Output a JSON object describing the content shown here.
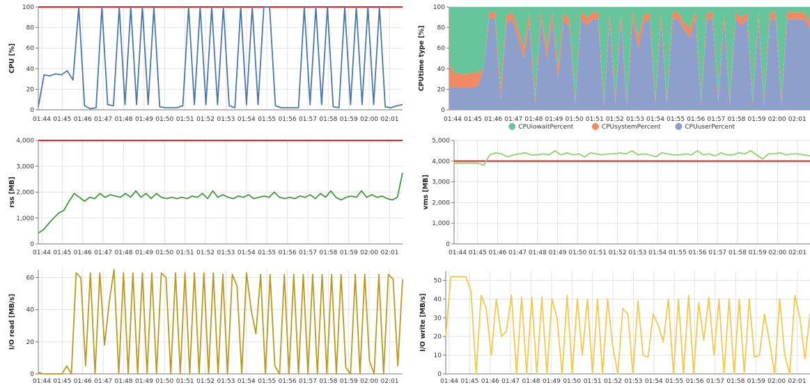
{
  "colors": {
    "grid": "#e3e3e3",
    "axis": "#777777",
    "threshold": "#e02424"
  },
  "x_ticks": [
    "01:44",
    "01:45",
    "01:46",
    "01:47",
    "01:48",
    "01:49",
    "01:50",
    "01:51",
    "01:52",
    "01:53",
    "01:54",
    "01:55",
    "01:56",
    "01:57",
    "01:58",
    "01:59",
    "02:00",
    "02:01"
  ],
  "chart_data": [
    {
      "type": "line",
      "ylabel": "CPU [%]",
      "ylim": [
        0,
        100
      ],
      "yticks": [
        0,
        20,
        40,
        60,
        80,
        100
      ],
      "threshold": 100,
      "grid": true,
      "color": "#4a77a8",
      "x": "time 01:44-02:01",
      "series": [
        {
          "values": [
            3,
            34,
            33,
            35,
            34,
            38,
            29,
            100,
            4,
            1,
            2,
            100,
            5,
            4,
            100,
            5,
            100,
            5,
            100,
            5,
            100,
            3,
            2,
            2,
            2,
            4,
            100,
            5,
            100,
            5,
            100,
            5,
            100,
            4,
            2,
            100,
            5,
            100,
            5,
            100,
            100,
            4,
            2,
            2,
            2,
            2,
            100,
            5,
            100,
            5,
            100,
            3,
            2,
            100,
            5,
            100,
            5,
            100,
            5,
            100,
            3,
            2,
            4,
            5
          ]
        }
      ]
    },
    {
      "type": "area",
      "ylabel": "CPUtime type [%]",
      "ylim": [
        0,
        100
      ],
      "yticks": [
        0,
        20,
        40,
        60,
        80,
        100
      ],
      "grid": true,
      "legend_position": "bottom",
      "series": [
        {
          "name": "CPUiowaitPercent",
          "color": "#67c59c"
        },
        {
          "name": "CPUsystemPercent",
          "color": "#f08a62"
        },
        {
          "name": "CPUuserPercent",
          "color": "#8da0cb"
        }
      ],
      "iowait_top": [
        100,
        100,
        100,
        100,
        100,
        100,
        100,
        100,
        100,
        100,
        100,
        100,
        100,
        100,
        100,
        100,
        100,
        100,
        100,
        100,
        100,
        100,
        100,
        100,
        100,
        100,
        100,
        100,
        100,
        100,
        100,
        100,
        100,
        100,
        100,
        100,
        100,
        100,
        100,
        100,
        100,
        100,
        100,
        100,
        100,
        100,
        100,
        100,
        100,
        100,
        100,
        100,
        100,
        100,
        100,
        100,
        100,
        100,
        100,
        100,
        100,
        100,
        100,
        100
      ],
      "system_top": [
        45,
        36,
        35,
        35,
        36,
        37,
        40,
        95,
        95,
        20,
        92,
        95,
        80,
        60,
        95,
        10,
        95,
        60,
        95,
        40,
        95,
        88,
        8,
        95,
        90,
        95,
        95,
        5,
        95,
        8,
        95,
        5,
        95,
        70,
        92,
        95,
        8,
        95,
        8,
        95,
        95,
        85,
        80,
        95,
        8,
        95,
        95,
        10,
        95,
        5,
        95,
        90,
        95,
        8,
        95,
        5,
        95,
        95,
        8,
        95,
        95,
        95,
        95,
        85
      ],
      "user_top": [
        22,
        22,
        22,
        22,
        22,
        23,
        40,
        90,
        88,
        10,
        85,
        88,
        70,
        50,
        85,
        5,
        88,
        50,
        88,
        30,
        88,
        80,
        5,
        88,
        82,
        88,
        88,
        3,
        88,
        5,
        88,
        3,
        88,
        60,
        85,
        88,
        5,
        88,
        5,
        88,
        88,
        78,
        70,
        88,
        5,
        88,
        88,
        7,
        88,
        3,
        88,
        82,
        88,
        5,
        88,
        3,
        88,
        88,
        5,
        88,
        88,
        88,
        88,
        78
      ]
    },
    {
      "type": "line",
      "ylabel": "rss [MB]",
      "ylim": [
        0,
        4000
      ],
      "yticks": [
        0,
        1000,
        2000,
        3000,
        4000
      ],
      "ytick_labels": [
        "0",
        "1,000",
        "2,000",
        "3,000",
        "4,000"
      ],
      "threshold": 4000,
      "grid": true,
      "color": "#3f9a3a",
      "x": "time 01:44-02:01",
      "series": [
        {
          "values": [
            420,
            550,
            780,
            1000,
            1200,
            1300,
            1650,
            1950,
            1800,
            1650,
            1800,
            1750,
            1950,
            1800,
            1900,
            1850,
            1800,
            1950,
            1800,
            2050,
            1800,
            1950,
            1750,
            1950,
            1800,
            1750,
            1800,
            1750,
            1800,
            1750,
            1850,
            1800,
            1950,
            1750,
            2050,
            1800,
            1900,
            1800,
            1750,
            1850,
            1800,
            1900,
            1750,
            1800,
            1850,
            1800,
            2000,
            1800,
            1750,
            1800,
            1750,
            1850,
            1800,
            1900,
            1750,
            1950,
            1800,
            2050,
            1800,
            1700,
            1800,
            1850,
            1800,
            2050,
            1800,
            1900,
            1800,
            1850,
            1750,
            1700,
            1800,
            2750
          ]
        }
      ]
    },
    {
      "type": "line",
      "ylabel": "vms [MB]",
      "ylim": [
        0,
        5000
      ],
      "yticks": [
        0,
        1000,
        2000,
        3000,
        4000,
        5000
      ],
      "ytick_labels": [
        "0",
        "1,000",
        "2,000",
        "3,000",
        "4,000",
        "5,000"
      ],
      "threshold": 4000,
      "grid": true,
      "color": "#8ed16f",
      "x": "time 01:44-02:01",
      "series": [
        {
          "values": [
            3900,
            3900,
            3900,
            3900,
            3900,
            3800,
            4300,
            4400,
            4350,
            4200,
            4300,
            4350,
            4400,
            4300,
            4300,
            4350,
            4300,
            4500,
            4300,
            4400,
            4300,
            4350,
            4200,
            4400,
            4350,
            4300,
            4350,
            4350,
            4400,
            4350,
            4500,
            4300,
            4350,
            4300,
            4200,
            4400,
            4350,
            4300,
            4300,
            4350,
            4300,
            4500,
            4300,
            4350,
            4250,
            4400,
            4300,
            4300,
            4400,
            4350,
            4500,
            4300,
            4100,
            4350,
            4350,
            4400,
            4300,
            4350,
            4350,
            4300,
            4250
          ]
        }
      ]
    },
    {
      "type": "line",
      "ylabel": "I/O read [MB/s]",
      "ylim": [
        0,
        65
      ],
      "yticks": [
        0,
        20,
        40,
        60
      ],
      "grid": true,
      "color": "#b89a1e",
      "x": "time 01:44-02:01",
      "series": [
        {
          "values": [
            1,
            0,
            0,
            0,
            0,
            0,
            5,
            0,
            63,
            60,
            5,
            63,
            0,
            63,
            18,
            45,
            65,
            0,
            63,
            0,
            63,
            0,
            63,
            0,
            63,
            0,
            63,
            60,
            0,
            63,
            0,
            63,
            0,
            63,
            0,
            63,
            0,
            63,
            0,
            62,
            0,
            62,
            55,
            0,
            63,
            40,
            25,
            62,
            0,
            62,
            5,
            0,
            62,
            0,
            62,
            0,
            62,
            0,
            62,
            0,
            62,
            0,
            62,
            0,
            62,
            4,
            0,
            62,
            0,
            62,
            8,
            0,
            62,
            0,
            62,
            59,
            5,
            59
          ]
        }
      ]
    },
    {
      "type": "line",
      "ylabel": "I/O write [MB/s]",
      "ylim": [
        0,
        55
      ],
      "yticks": [
        0,
        10,
        20,
        30,
        40,
        50
      ],
      "grid": true,
      "color": "#f2c94c",
      "x": "time 01:44-02:01",
      "series": [
        {
          "values": [
            20,
            52,
            52,
            52,
            52,
            44,
            0,
            42,
            35,
            10,
            40,
            20,
            23,
            42,
            0,
            41,
            0,
            41,
            0,
            41,
            0,
            40,
            30,
            0,
            42,
            0,
            40,
            10,
            40,
            0,
            40,
            0,
            40,
            15,
            0,
            35,
            32,
            0,
            39,
            10,
            9,
            32,
            26,
            17,
            40,
            0,
            40,
            0,
            42,
            0,
            38,
            18,
            41,
            10,
            40,
            0,
            40,
            0,
            40,
            0,
            40,
            9,
            10,
            32,
            17,
            0,
            40,
            10,
            0,
            42,
            30,
            8,
            32
          ]
        }
      ]
    }
  ]
}
